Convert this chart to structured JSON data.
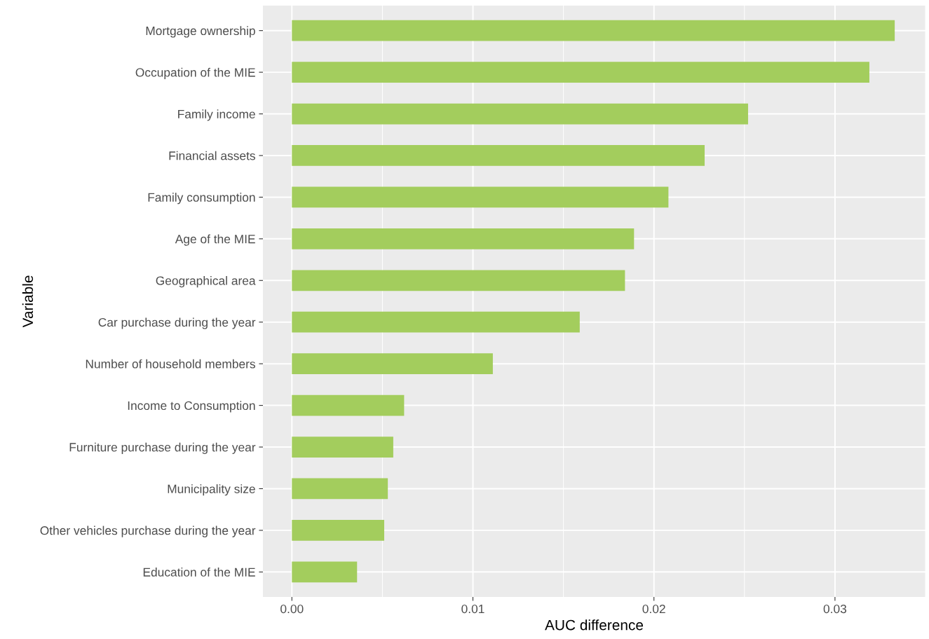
{
  "chart_data": {
    "type": "bar",
    "orientation": "horizontal",
    "xlabel": "AUC difference",
    "ylabel": "Variable",
    "categories": [
      "Mortgage ownership",
      "Occupation of the MIE",
      "Family income",
      "Financial assets",
      "Family consumption",
      "Age of the MIE",
      "Geographical area",
      "Car purchase during the year",
      "Number of household members",
      "Income to Consumption",
      "Furniture purchase during the year",
      "Municipality size",
      "Other vehicles purchase during the year",
      "Education of the MIE"
    ],
    "values": [
      0.0333,
      0.0319,
      0.0252,
      0.0228,
      0.0208,
      0.0189,
      0.0184,
      0.0159,
      0.0111,
      0.0062,
      0.0056,
      0.0053,
      0.0051,
      0.0036
    ],
    "color": "#a3cd5d",
    "xlim": [
      -0.0016,
      0.035
    ],
    "xticks": [
      {
        "value": 0,
        "label": "0.00"
      },
      {
        "value": 0.01,
        "label": "0.01"
      },
      {
        "value": 0.02,
        "label": "0.02"
      },
      {
        "value": 0.03,
        "label": "0.03"
      }
    ],
    "grid": true,
    "legend": false
  }
}
